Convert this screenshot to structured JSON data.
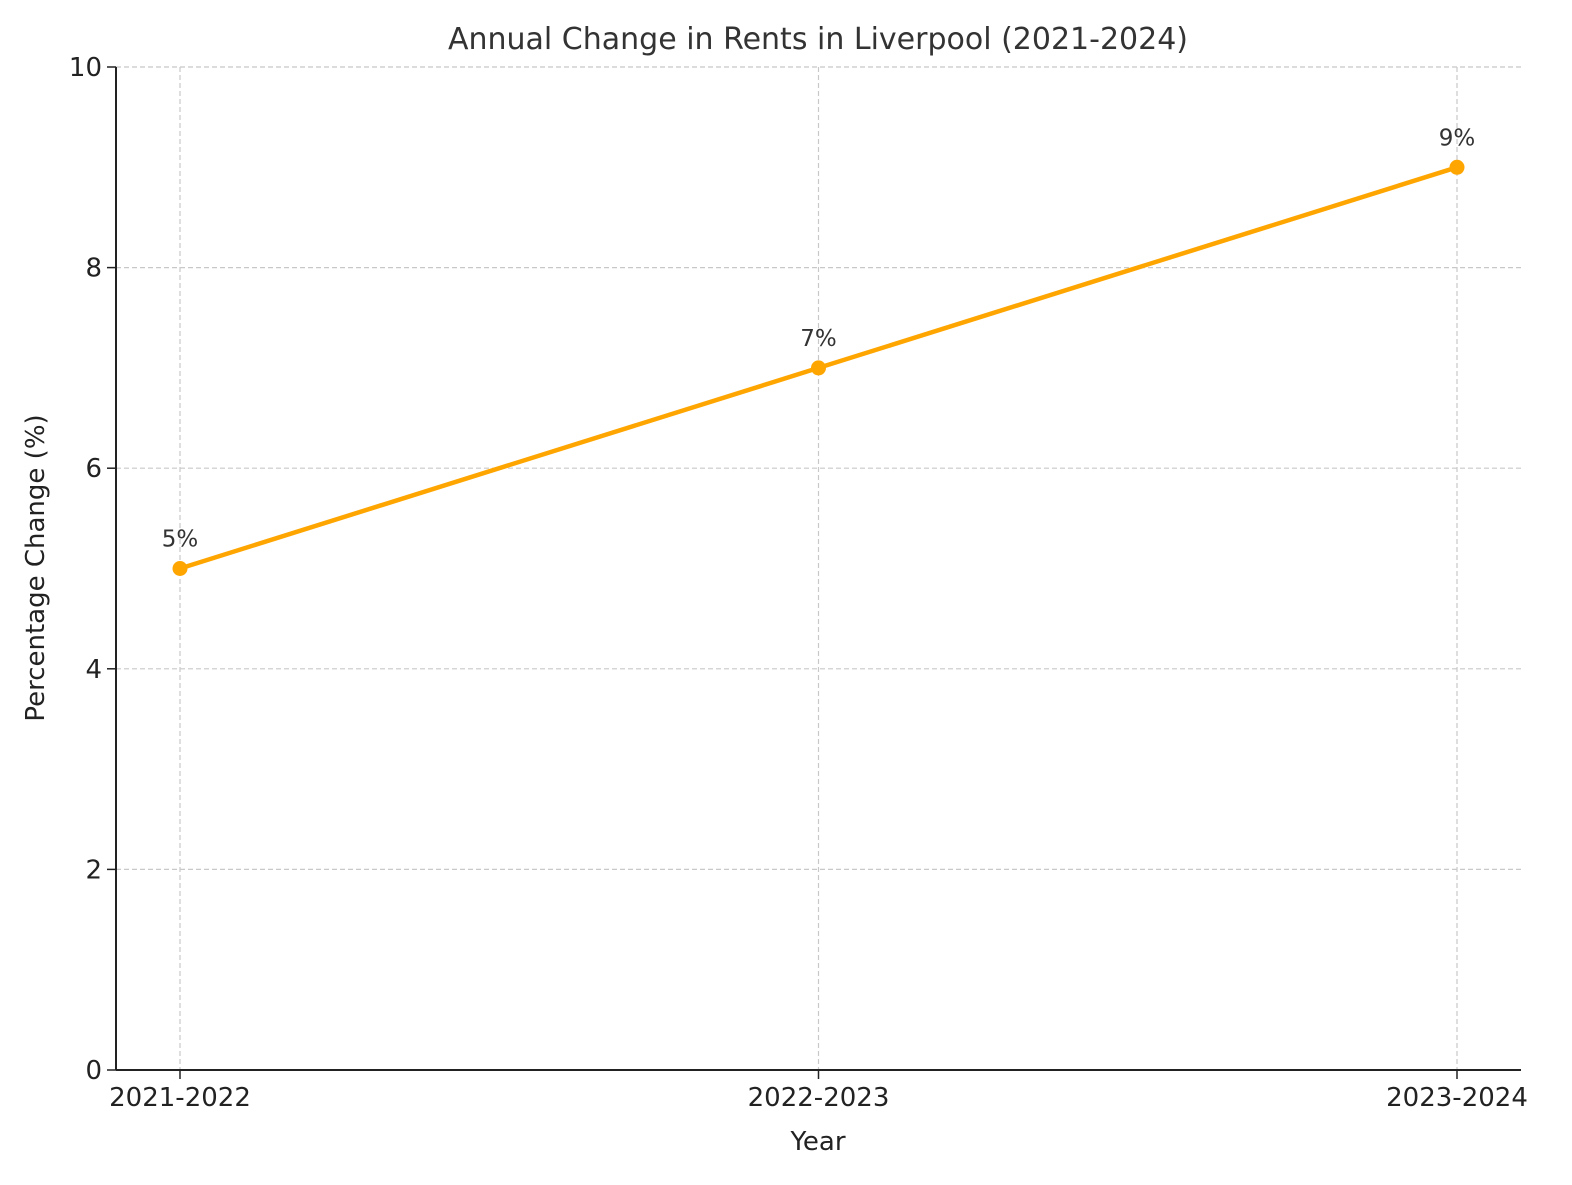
{
  "chart_data": {
    "type": "line",
    "title": "Annual Change in Rents in Liverpool (2021-2024)",
    "xlabel": "Year",
    "ylabel": "Percentage Change (%)",
    "categories": [
      "2021-2022",
      "2022-2023",
      "2023-2024"
    ],
    "values": [
      5,
      7,
      9
    ],
    "data_labels": [
      "5%",
      "7%",
      "9%"
    ],
    "ylim": [
      0,
      10
    ],
    "yticks": [
      "0",
      "2",
      "4",
      "6",
      "8",
      "10"
    ],
    "grid": true,
    "line_color": "#FFA500"
  }
}
